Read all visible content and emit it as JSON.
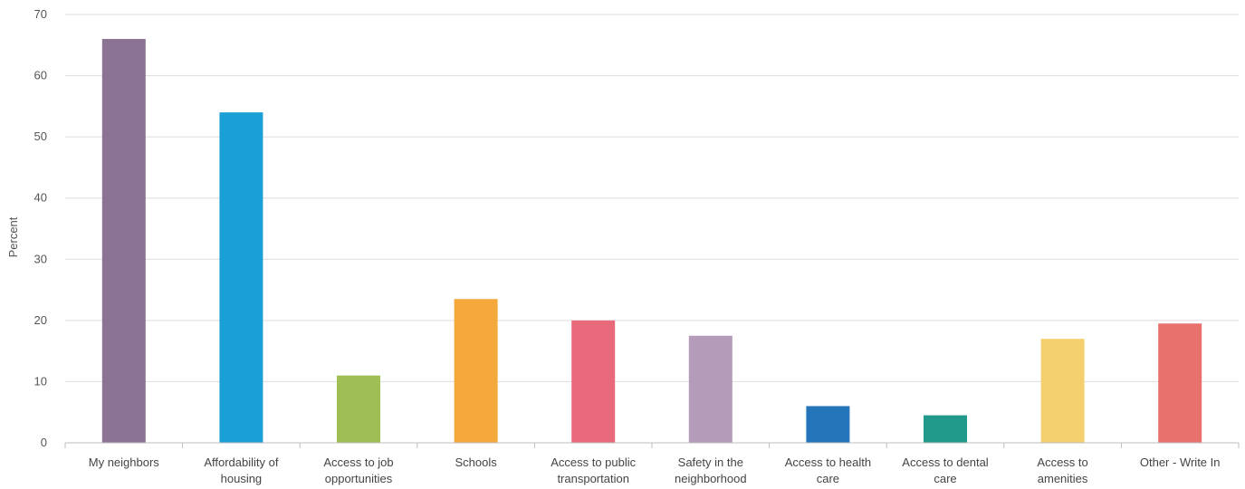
{
  "chart_data": {
    "type": "bar",
    "title": "",
    "xlabel": "",
    "ylabel": "Percent",
    "ylim": [
      0,
      70
    ],
    "yticks": [
      0,
      10,
      20,
      30,
      40,
      50,
      60,
      70
    ],
    "grid": true,
    "categories": [
      [
        "My neighbors"
      ],
      [
        "Affordability of",
        "housing"
      ],
      [
        "Access to job",
        "opportunities"
      ],
      [
        "Schools"
      ],
      [
        "Access to public",
        "transportation"
      ],
      [
        "Safety in the",
        "neighborhood"
      ],
      [
        "Access to health",
        "care"
      ],
      [
        "Access to dental",
        "care"
      ],
      [
        "Access to",
        "amenities"
      ],
      [
        "Other - Write In"
      ]
    ],
    "values": [
      66,
      54,
      11,
      23.5,
      20,
      17.5,
      6,
      4.5,
      17,
      19.5
    ],
    "colors": [
      "#8a7393",
      "#1a9fd6",
      "#9fbf55",
      "#f5a93d",
      "#e86a7a",
      "#b39bb9",
      "#2575bb",
      "#21998b",
      "#f5d06e",
      "#e8716e"
    ]
  }
}
